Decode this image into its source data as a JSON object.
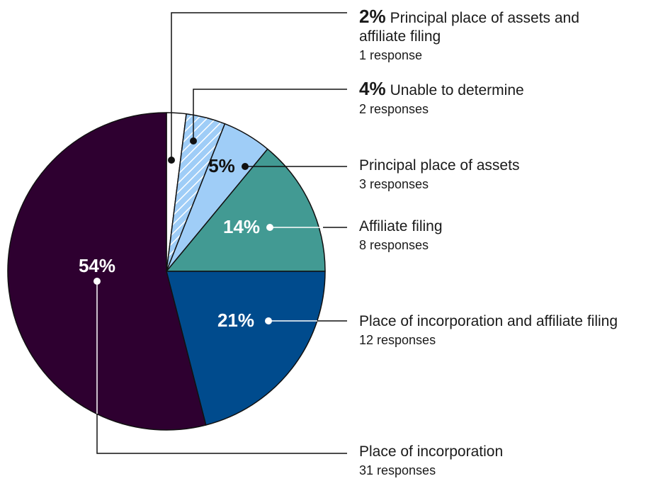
{
  "chart_data": {
    "type": "pie",
    "categories": [
      "Principal place of assets and affiliate filing",
      "Unable to determine",
      "Principal place of assets",
      "Affiliate filing",
      "Place of incorporation and affiliate filing",
      "Place of incorporation"
    ],
    "values": [
      2,
      4,
      5,
      14,
      21,
      54
    ],
    "value_labels": [
      "2%",
      "4%",
      "5%",
      "14%",
      "21%",
      "54%"
    ],
    "responses": [
      "1 response",
      "2 responses",
      "3 responses",
      "8 responses",
      "12 responses",
      "31 responses"
    ],
    "colors": [
      "#ffffff",
      "hatch",
      "#9fcdf7",
      "#429a93",
      "#004b8d",
      "#2e0030"
    ]
  }
}
